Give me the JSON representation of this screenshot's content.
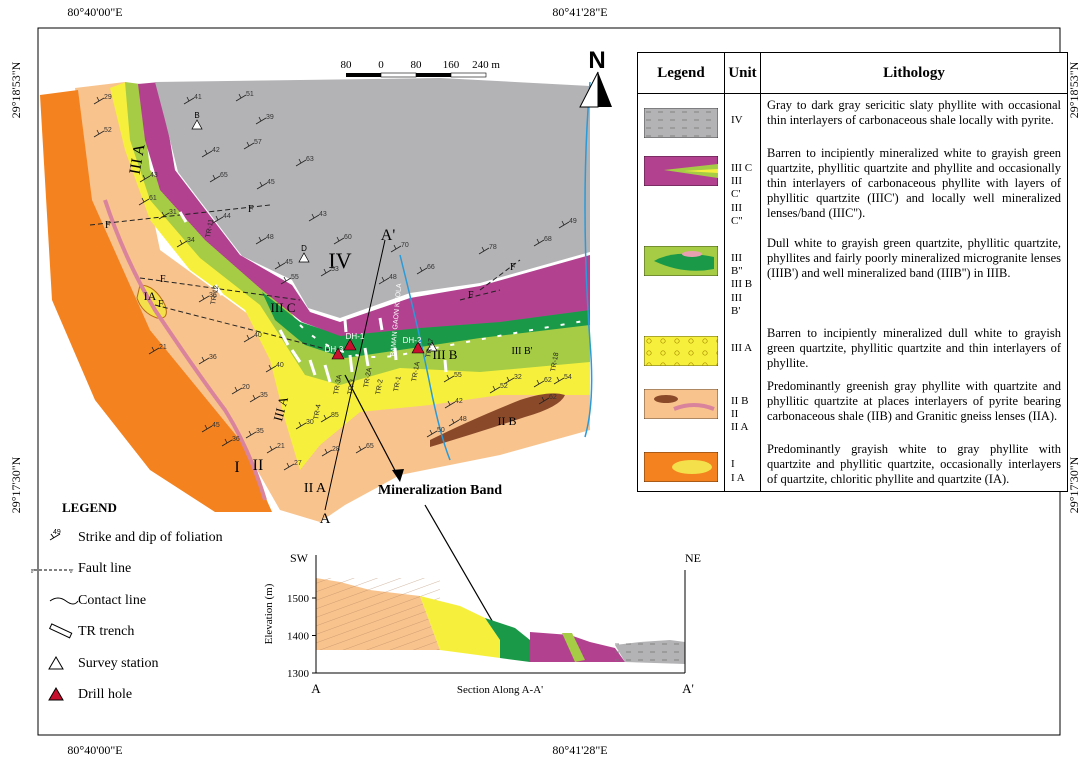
{
  "coordinates": {
    "top": [
      "80°40'00\"E",
      "80°41'28\"E"
    ],
    "bottom": [
      "80°40'00\"E",
      "80°41'28\"E"
    ],
    "left": [
      "29°18'53\"N",
      "29°17'30\"N"
    ],
    "right": [
      "29°18'53\"N",
      "29°17'30\"N"
    ]
  },
  "scale_bar": [
    "80",
    "0",
    "80",
    "160",
    "240 m"
  ],
  "north": "N",
  "map_labels": [
    "IV",
    "III C",
    "III B",
    "III A",
    "III A",
    "II B",
    "II A",
    "II",
    "I",
    "IA",
    "A'",
    "A",
    "DH-1",
    "DH-2",
    "DH-3",
    "B",
    "D",
    "BAMAN GAON KHOLA",
    "THULO KHOLA",
    "III B'",
    "Mineralization Band"
  ],
  "faults": [
    "F",
    "F",
    "F",
    "F",
    "F",
    "F"
  ],
  "trenches": [
    "TR-1",
    "TR-1A",
    "TR-2",
    "TR-2A",
    "TR-3",
    "TR-3A",
    "TR-4",
    "TR-11",
    "TR-12",
    "TR-17",
    "TR-18"
  ],
  "dips": [
    29,
    52,
    41,
    51,
    39,
    57,
    42,
    63,
    65,
    45,
    43,
    61,
    31,
    34,
    44,
    43,
    48,
    60,
    45,
    53,
    55,
    48,
    70,
    66,
    78,
    68,
    49,
    36,
    36,
    40,
    20,
    21,
    40,
    35,
    30,
    35,
    55,
    32,
    42,
    48,
    52,
    62,
    54,
    62,
    50,
    65,
    28,
    21,
    45,
    36,
    27,
    85
  ],
  "legend": {
    "title": "LEGEND",
    "dip_sample": "49",
    "fault_sample": [
      "F",
      "F"
    ],
    "items": [
      "Strike and dip of foliation",
      "Fault line",
      "Contact line",
      "TR trench",
      "Survey station",
      "Drill hole"
    ]
  },
  "section": {
    "sw": "SW",
    "ne": "NE",
    "y_label": "Elevation (m)",
    "yticks": [
      1500,
      1400,
      1300
    ],
    "start": "A",
    "end": "A'",
    "title": "Section Along A-A'"
  },
  "table": {
    "header": [
      "Legend",
      "Unit",
      "Lithology"
    ],
    "rows": [
      {
        "units": [
          "IV"
        ],
        "lithology": "Gray to dark gray sericitic slaty phyllite with occasional thin interlayers of carbonaceous shale locally with pyrite."
      },
      {
        "units": [
          "III C",
          "III C'",
          "III C''"
        ],
        "lithology": "Barren to incipiently mineralized white to grayish green quartzite, phyllitic quartzite and phyllite and occasionally thin interlayers of carbonaceous phyllite with layers of phyllitic quartzite (IIIC') and locally well mineralized lenses/band (IIIC'')."
      },
      {
        "units": [
          "III B''",
          "III B",
          "III B'"
        ],
        "lithology": "Dull white to grayish green quartzite, phyllitic quartzite, phyllites and fairly poorly mineralized microgranite lenses (IIIB') and well mineralized band (IIIB'') in IIIB."
      },
      {
        "units": [
          "III A"
        ],
        "lithology": "Barren to incipiently mineralized dull white to grayish green quartzite, phyllitic quartzite and thin interlayers of phyllite."
      },
      {
        "units": [
          "II B",
          "II",
          "II A"
        ],
        "lithology": "Predominantly greenish gray phyllite with quartzite and phyllitic quartzite at places interlayers of pyrite bearing carbonaceous shale (IIB) and Granitic gneiss lenses (IIA)."
      },
      {
        "units": [
          "I",
          "I A"
        ],
        "lithology": "Predominantly grayish white to gray phyllite with quartzite and phyllitic quartzite, occasionally interlayers of quartzite, chloritic phyllite and quartzite (IA)."
      }
    ]
  }
}
